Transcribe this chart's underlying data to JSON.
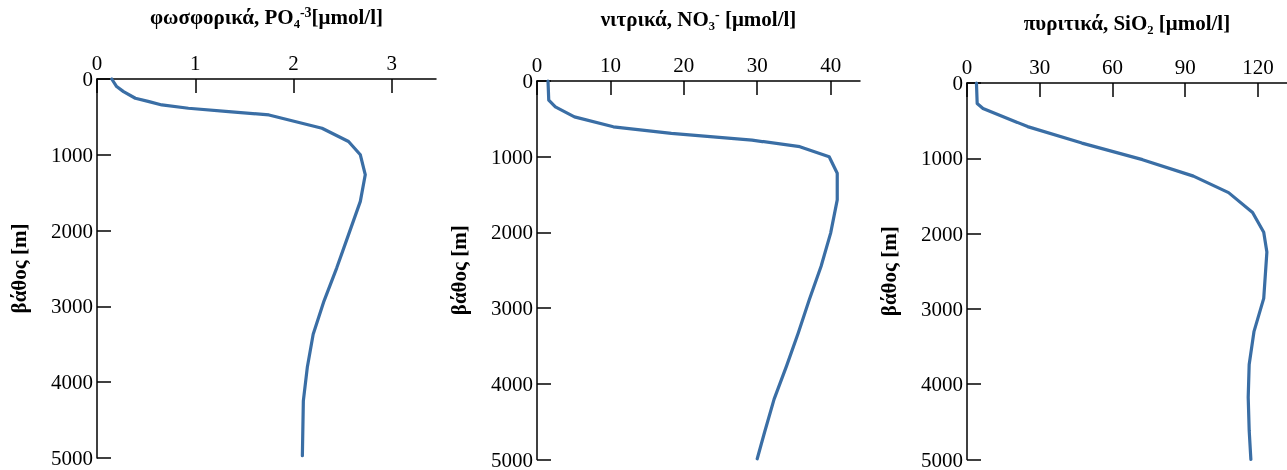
{
  "chart_data": [
    {
      "type": "line",
      "xlabel": "φωσφορικά, PO₄$^{-3}$[μmol/l]",
      "ylabel": "βάθος [m]",
      "xlim": [
        0,
        3.45
      ],
      "xticks": [
        0,
        1,
        2,
        3
      ],
      "ylim": [
        5000,
        0
      ],
      "yticks": [
        0,
        1000,
        2000,
        3000,
        4000,
        5000
      ],
      "line_style": "solid",
      "series": [
        {
          "color": "#3a6ea5",
          "x": [
            0.15,
            0.2,
            0.27,
            0.39,
            0.53,
            0.66,
            0.93,
            1.34,
            1.75,
            2.29,
            2.56,
            2.68,
            2.73,
            2.68,
            2.56,
            2.44,
            2.31,
            2.2,
            2.14,
            2.1,
            2.09
          ],
          "values": [
            0,
            100,
            167,
            254,
            298,
            342,
            386,
            430,
            474,
            650,
            825,
            1000,
            1263,
            1614,
            2053,
            2491,
            2930,
            3368,
            3807,
            4246,
            4970
          ]
        }
      ]
    },
    {
      "type": "line",
      "xlabel": "νιτρικά, NO₃$^{-}$ [μmol/l]",
      "ylabel": "βάθος [m]",
      "xlim": [
        0,
        44
      ],
      "xticks": [
        0,
        10,
        20,
        30,
        40
      ],
      "ylim": [
        5000,
        0
      ],
      "yticks": [
        0,
        1000,
        2000,
        3000,
        4000,
        5000
      ],
      "line_style": "solid",
      "series": [
        {
          "color": "#3a6ea5",
          "x": [
            1.5,
            1.6,
            2.5,
            5.1,
            10.4,
            18.3,
            29.3,
            35.8,
            39.8,
            40.9,
            40.9,
            40,
            38.7,
            37.1,
            35.6,
            34,
            32.3,
            31,
            30
          ],
          "values": [
            0,
            254,
            342,
            474,
            605,
            693,
            781,
            868,
            1000,
            1219,
            1570,
            2009,
            2447,
            2886,
            3325,
            3763,
            4202,
            4640,
            4990
          ]
        }
      ]
    },
    {
      "type": "line",
      "xlabel": "πυριτικά, SiO₂ [μmol/l]",
      "ylabel": "βάθος [m]",
      "xlim": [
        0,
        132
      ],
      "xticks": [
        0,
        30,
        60,
        90,
        120
      ],
      "ylim": [
        5000,
        0
      ],
      "yticks": [
        0,
        1000,
        2000,
        3000,
        4000,
        5000
      ],
      "line_style": "solid",
      "series": [
        {
          "color": "#3a6ea5",
          "x": [
            3.9,
            4.2,
            6.6,
            25,
            47.4,
            72.4,
            93.4,
            107.9,
            117.8,
            122.4,
            123.7,
            122.4,
            118.4,
            116.4,
            116,
            116.4,
            117.1
          ],
          "values": [
            0,
            272,
            338,
            579,
            798,
            1018,
            1237,
            1456,
            1719,
            1982,
            2246,
            2860,
            3298,
            3737,
            4175,
            4614,
            5000
          ]
        }
      ]
    }
  ]
}
